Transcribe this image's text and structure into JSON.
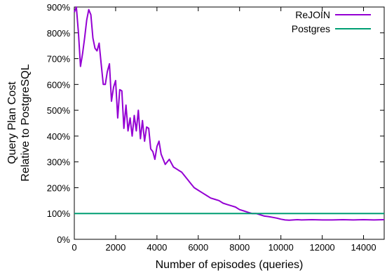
{
  "chart_data": {
    "type": "line",
    "title": "",
    "xlabel": "Number of episodes (queries)",
    "ylabel_line1": "Query Plan Cost",
    "ylabel_line2": "Relative to PostgreSQL",
    "xlim": [
      0,
      15000
    ],
    "ylim": [
      0,
      900
    ],
    "x_ticks": [
      {
        "value": 0,
        "label": "0"
      },
      {
        "value": 2000,
        "label": "2000"
      },
      {
        "value": 4000,
        "label": "4000"
      },
      {
        "value": 6000,
        "label": "6000"
      },
      {
        "value": 8000,
        "label": "8000"
      },
      {
        "value": 10000,
        "label": "10000"
      },
      {
        "value": 12000,
        "label": "12000"
      },
      {
        "value": 14000,
        "label": "14000"
      }
    ],
    "y_ticks": [
      {
        "value": 0,
        "label": "0%"
      },
      {
        "value": 100,
        "label": "100%"
      },
      {
        "value": 200,
        "label": "200%"
      },
      {
        "value": 300,
        "label": "300%"
      },
      {
        "value": 400,
        "label": "400%"
      },
      {
        "value": 500,
        "label": "500%"
      },
      {
        "value": 600,
        "label": "600%"
      },
      {
        "value": 700,
        "label": "700%"
      },
      {
        "value": 800,
        "label": "800%"
      },
      {
        "value": 900,
        "label": "900%"
      }
    ],
    "grid": false,
    "legend_position": "top-right",
    "series": [
      {
        "name": "ReJOIN",
        "color": "#9400d3",
        "x": [
          0,
          100,
          200,
          300,
          400,
          500,
          600,
          700,
          800,
          900,
          1000,
          1100,
          1200,
          1300,
          1400,
          1500,
          1600,
          1700,
          1800,
          1900,
          2000,
          2100,
          2200,
          2300,
          2400,
          2500,
          2600,
          2700,
          2800,
          2900,
          3000,
          3100,
          3200,
          3300,
          3400,
          3500,
          3600,
          3700,
          3800,
          3900,
          4000,
          4100,
          4200,
          4400,
          4600,
          4800,
          5000,
          5200,
          5400,
          5600,
          5800,
          6000,
          6200,
          6400,
          6600,
          6800,
          7000,
          7200,
          7400,
          7600,
          7800,
          8000,
          8200,
          8400,
          8600,
          8800,
          9000,
          9200,
          9400,
          9600,
          9800,
          10000,
          10200,
          10400,
          10600,
          10800,
          11000,
          11500,
          12000,
          12500,
          13000,
          13500,
          14000,
          14500,
          15000
        ],
        "values": [
          880,
          900,
          800,
          670,
          720,
          780,
          850,
          890,
          870,
          780,
          740,
          730,
          760,
          680,
          600,
          600,
          650,
          680,
          535,
          590,
          615,
          470,
          580,
          575,
          430,
          520,
          420,
          470,
          400,
          480,
          420,
          500,
          390,
          460,
          380,
          435,
          430,
          350,
          340,
          310,
          360,
          380,
          330,
          290,
          310,
          280,
          270,
          260,
          240,
          220,
          200,
          190,
          180,
          170,
          160,
          155,
          150,
          140,
          135,
          130,
          125,
          115,
          110,
          105,
          100,
          100,
          95,
          90,
          88,
          85,
          82,
          78,
          75,
          74,
          75,
          76,
          75,
          76,
          75,
          75,
          76,
          75,
          76,
          75,
          76
        ]
      },
      {
        "name": "Postgres",
        "color": "#009e73",
        "x": [
          0,
          15000
        ],
        "values": [
          100,
          100
        ]
      }
    ]
  }
}
